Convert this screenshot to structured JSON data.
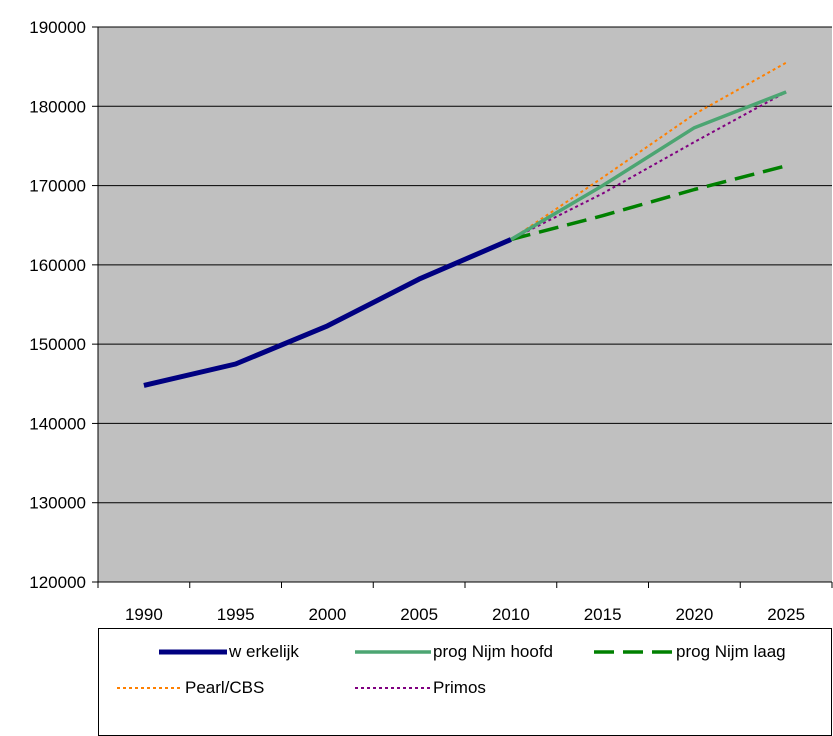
{
  "chart_data": {
    "type": "line",
    "x": [
      "1990",
      "1995",
      "2000",
      "2005",
      "2010",
      "2015",
      "2020",
      "2025"
    ],
    "ylim": [
      120000,
      190000
    ],
    "yticks": [
      120000,
      130000,
      140000,
      150000,
      160000,
      170000,
      180000,
      190000
    ],
    "grid": true,
    "plot_background": "#c0c0c0",
    "legend_position": "bottom",
    "series": [
      {
        "name": "w erkelijk",
        "color": "#000080",
        "style": "solid-thick",
        "points": [
          [
            1990,
            144800
          ],
          [
            1995,
            147500
          ],
          [
            2000,
            152300
          ],
          [
            2005,
            158200
          ],
          [
            2010,
            163200
          ]
        ]
      },
      {
        "name": "prog Nijm hoofd",
        "color": "#4ca572",
        "style": "solid",
        "points": [
          [
            2010,
            163200
          ],
          [
            2015,
            170000
          ],
          [
            2020,
            177300
          ],
          [
            2025,
            181800
          ]
        ]
      },
      {
        "name": "prog Nijm laag",
        "color": "#008000",
        "style": "long-dash",
        "points": [
          [
            2010,
            163200
          ],
          [
            2015,
            166200
          ],
          [
            2020,
            169500
          ],
          [
            2025,
            172500
          ]
        ]
      },
      {
        "name": "Pearl/CBS",
        "color": "#ff8000",
        "style": "dotted",
        "points": [
          [
            2010,
            163200
          ],
          [
            2015,
            171000
          ],
          [
            2020,
            179000
          ],
          [
            2025,
            185500
          ]
        ]
      },
      {
        "name": "Primos",
        "color": "#800080",
        "style": "dotted",
        "points": [
          [
            2010,
            163200
          ],
          [
            2015,
            169000
          ],
          [
            2020,
            175500
          ],
          [
            2025,
            181800
          ]
        ]
      }
    ]
  }
}
